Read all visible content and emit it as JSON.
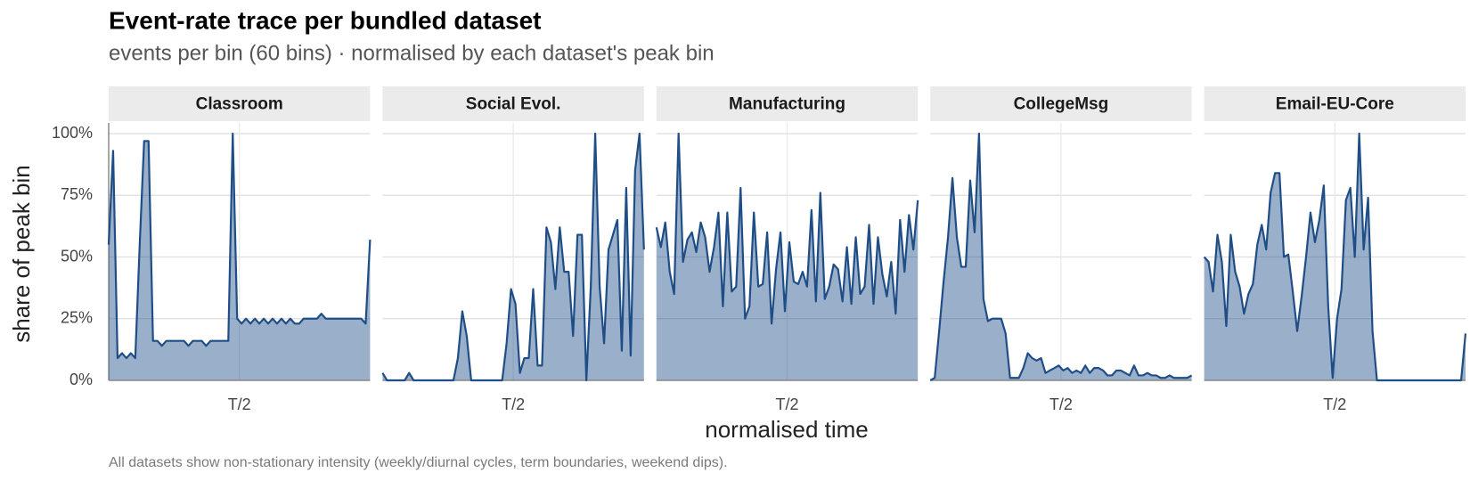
{
  "title": "Event-rate trace per bundled dataset",
  "subtitle": "events per bin (60 bins) · normalised by each dataset's peak bin",
  "x_label": "normalised time",
  "y_label": "share of peak bin",
  "caption": "All datasets show non-stationary intensity (weekly/diurnal cycles, term boundaries, weekend dips).",
  "chart_data": [
    {
      "type": "area",
      "title": "Classroom",
      "color": "#1f4e87",
      "grid": true,
      "xlim": [
        0,
        59
      ],
      "xticks": [
        {
          "value": 29.5,
          "label": "T/2"
        }
      ],
      "ylim": [
        0,
        100
      ],
      "yticks": [
        {
          "value": 0,
          "label": "0%"
        },
        {
          "value": 25,
          "label": "25%"
        },
        {
          "value": 50,
          "label": "50%"
        },
        {
          "value": 75,
          "label": "75%"
        },
        {
          "value": 100,
          "label": "100%"
        }
      ],
      "values": [
        55,
        93,
        9,
        11,
        9,
        11,
        9,
        55,
        97,
        97,
        16,
        16,
        14,
        16,
        16,
        16,
        16,
        16,
        14,
        16,
        16,
        16,
        14,
        16,
        16,
        16,
        16,
        16,
        100,
        25,
        23,
        25,
        23,
        25,
        23,
        25,
        23,
        25,
        23,
        25,
        23,
        25,
        23,
        23,
        25,
        25,
        25,
        25,
        27,
        25,
        25,
        25,
        25,
        25,
        25,
        25,
        25,
        25,
        23,
        57
      ]
    },
    {
      "type": "area",
      "title": "Social Evol.",
      "color": "#1f4e87",
      "grid": true,
      "xlim": [
        0,
        59
      ],
      "xticks": [
        {
          "value": 29.5,
          "label": "T/2"
        }
      ],
      "ylim": [
        0,
        100
      ],
      "yticks": [
        {
          "value": 0,
          "label": "0%"
        },
        {
          "value": 25,
          "label": "25%"
        },
        {
          "value": 50,
          "label": "50%"
        },
        {
          "value": 75,
          "label": "75%"
        },
        {
          "value": 100,
          "label": "100%"
        }
      ],
      "values": [
        3,
        0,
        0,
        0,
        0,
        0,
        3,
        0,
        0,
        0,
        0,
        0,
        0,
        0,
        0,
        0,
        0,
        9,
        28,
        18,
        0,
        0,
        0,
        0,
        0,
        0,
        0,
        0,
        15,
        37,
        31,
        3,
        9,
        9,
        37,
        6,
        6,
        62,
        56,
        37,
        62,
        44,
        44,
        18,
        59,
        59,
        0,
        38,
        100,
        38,
        15,
        53,
        59,
        65,
        12,
        78,
        10,
        85,
        100,
        53
      ]
    },
    {
      "type": "area",
      "title": "Manufacturing",
      "color": "#1f4e87",
      "grid": true,
      "xlim": [
        0,
        59
      ],
      "xticks": [
        {
          "value": 29.5,
          "label": "T/2"
        }
      ],
      "ylim": [
        0,
        100
      ],
      "yticks": [
        {
          "value": 0,
          "label": "0%"
        },
        {
          "value": 25,
          "label": "25%"
        },
        {
          "value": 50,
          "label": "50%"
        },
        {
          "value": 75,
          "label": "75%"
        },
        {
          "value": 100,
          "label": "100%"
        }
      ],
      "values": [
        62,
        54,
        64,
        44,
        35,
        100,
        48,
        57,
        60,
        52,
        64,
        58,
        44,
        54,
        68,
        30,
        68,
        36,
        38,
        78,
        25,
        30,
        68,
        38,
        39,
        60,
        23,
        45,
        60,
        28,
        56,
        40,
        39,
        44,
        38,
        69,
        32,
        76,
        33,
        38,
        47,
        45,
        32,
        54,
        31,
        58,
        35,
        38,
        63,
        31,
        58,
        43,
        34,
        48,
        27,
        65,
        44,
        67,
        53,
        73
      ]
    },
    {
      "type": "area",
      "title": "CollegeMsg",
      "color": "#1f4e87",
      "grid": true,
      "xlim": [
        0,
        59
      ],
      "xticks": [
        {
          "value": 29.5,
          "label": "T/2"
        }
      ],
      "ylim": [
        0,
        100
      ],
      "yticks": [
        {
          "value": 0,
          "label": "0%"
        },
        {
          "value": 25,
          "label": "25%"
        },
        {
          "value": 50,
          "label": "50%"
        },
        {
          "value": 75,
          "label": "75%"
        },
        {
          "value": 100,
          "label": "100%"
        }
      ],
      "values": [
        0,
        1,
        20,
        40,
        58,
        82,
        58,
        46,
        46,
        81,
        60,
        100,
        33,
        24,
        25,
        25,
        25,
        19,
        1,
        1,
        1,
        5,
        11,
        9,
        8,
        9,
        3,
        4,
        5,
        6,
        4,
        5,
        3,
        4,
        3,
        6,
        3,
        5,
        5,
        4,
        2,
        2,
        4,
        4,
        3,
        2,
        6,
        2,
        2,
        3,
        2,
        2,
        1,
        1,
        2,
        1,
        1,
        1,
        1,
        2
      ]
    },
    {
      "type": "area",
      "title": "Email-EU-Core",
      "color": "#1f4e87",
      "grid": true,
      "xlim": [
        0,
        59
      ],
      "xticks": [
        {
          "value": 29.5,
          "label": "T/2"
        }
      ],
      "ylim": [
        0,
        100
      ],
      "yticks": [
        {
          "value": 0,
          "label": "0%"
        },
        {
          "value": 25,
          "label": "25%"
        },
        {
          "value": 50,
          "label": "50%"
        },
        {
          "value": 75,
          "label": "75%"
        },
        {
          "value": 100,
          "label": "100%"
        }
      ],
      "values": [
        50,
        48,
        36,
        59,
        48,
        22,
        59,
        44,
        38,
        27,
        35,
        39,
        55,
        63,
        53,
        76,
        84,
        84,
        50,
        51,
        36,
        20,
        34,
        50,
        68,
        56,
        65,
        79,
        30,
        1,
        25,
        37,
        73,
        78,
        50,
        100,
        53,
        74,
        20,
        0,
        0,
        0,
        0,
        0,
        0,
        0,
        0,
        0,
        0,
        0,
        0,
        0,
        0,
        0,
        0,
        0,
        0,
        0,
        0,
        19
      ]
    }
  ]
}
